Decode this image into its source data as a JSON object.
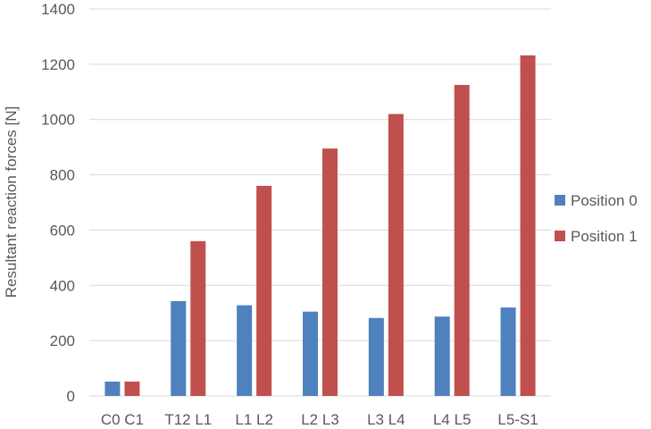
{
  "chart_data": {
    "type": "bar",
    "title": "",
    "xlabel": "",
    "ylabel": "Resultant reaction forces [N]",
    "ylim": [
      0,
      1400
    ],
    "yticks": [
      0,
      200,
      400,
      600,
      800,
      1000,
      1200,
      1400
    ],
    "grid": true,
    "legend_position": "right",
    "categories": [
      "C0 C1",
      "T12 L1",
      "L1 L2",
      "L2 L3",
      "L3 L4",
      "L4 L5",
      "L5-S1"
    ],
    "series": [
      {
        "name": "Position 0",
        "color": "#4E81BD",
        "values": [
          52,
          343,
          328,
          305,
          282,
          287,
          320
        ]
      },
      {
        "name": "Position 1",
        "color": "#C0504D",
        "values": [
          52,
          560,
          760,
          895,
          1020,
          1125,
          1232
        ]
      }
    ]
  }
}
